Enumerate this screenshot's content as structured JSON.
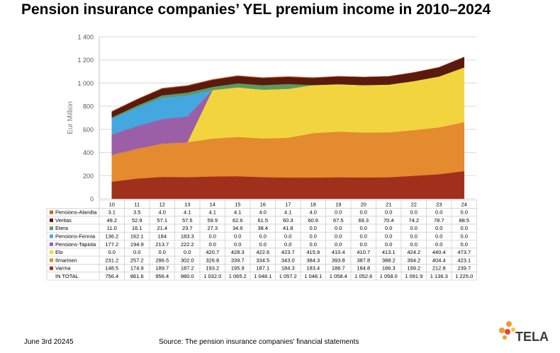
{
  "title": "Pension insurance companies’ YEL premium income in 2010–2024",
  "footer": {
    "date": "June 3rd 20245",
    "source": "Source: The pension insurance companies' financial statements"
  },
  "logo_text": "TELA",
  "chart_data": {
    "type": "area",
    "stacked": true,
    "title": "Pension insurance companies’ YEL premium income in 2010–2024",
    "ylabel": "Eur Million",
    "ylim": [
      0,
      1400
    ],
    "yticks": [
      0,
      200,
      400,
      600,
      800,
      1000,
      1200,
      1400
    ],
    "ytick_labels": [
      "0",
      "200",
      "400",
      "600",
      "800",
      "1 000",
      "1 200",
      "1 400"
    ],
    "categories": [
      "10",
      "11",
      "12",
      "13",
      "14",
      "15",
      "16",
      "17",
      "18",
      "19",
      "20",
      "21",
      "22",
      "23",
      "24"
    ],
    "grid": true,
    "series": [
      {
        "name": "Varma",
        "color": "#a0301c",
        "values": [
          148.5,
          174.9,
          189.7,
          187.2,
          193.2,
          195.9,
          187.1,
          184.3,
          183.4,
          186.7,
          184.8,
          186.3,
          199.2,
          212.8,
          239.7
        ],
        "labels": [
          "148.5",
          "174.9",
          "189.7",
          "187.2",
          "193.2",
          "195.9",
          "187.1",
          "184.3",
          "183.4",
          "186.7",
          "184.8",
          "186.3",
          "199.2",
          "212.8",
          "239.7"
        ]
      },
      {
        "name": "Ilmarinen",
        "color": "#e48a2f",
        "values": [
          231.2,
          257.2,
          286.5,
          302.0,
          326.8,
          339.7,
          334.5,
          343.0,
          384.3,
          393.8,
          387.8,
          388.2,
          394.2,
          404.4,
          423.1
        ],
        "labels": [
          "231.2",
          "257.2",
          "286.5",
          "302.0",
          "326.8",
          "339.7",
          "334.5",
          "343.0",
          "384.3",
          "393.8",
          "387.8",
          "388.2",
          "394.2",
          "404.4",
          "423.1"
        ]
      },
      {
        "name": "Elo",
        "color": "#f2d43f",
        "values": [
          0,
          0,
          0,
          0,
          420.7,
          428.3,
          422.6,
          423.7,
          415.9,
          410.4,
          410.7,
          413.1,
          424.2,
          440.4,
          473.7
        ],
        "labels": [
          "0.0",
          "0.0",
          "0.0",
          "0.0",
          "420.7",
          "428.3",
          "422.6",
          "423.7",
          "415.9",
          "410.4",
          "410.7",
          "413.1",
          "424.2",
          "440.4",
          "473.7"
        ]
      },
      {
        "name": "Pensions-Tapiola",
        "color": "#9b5fa8",
        "values": [
          177.2,
          194.9,
          213.7,
          222.2,
          0,
          0,
          0,
          0,
          0,
          0,
          0,
          0,
          0,
          0,
          0
        ],
        "labels": [
          "177.2",
          "194.9",
          "213.7",
          "222.2",
          "0.0",
          "0.0",
          "0.0",
          "0.0",
          "0.0",
          "0.0",
          "0.0",
          "0.0",
          "0.0",
          "0.0",
          "0.0"
        ]
      },
      {
        "name": "Pensions-Fennia",
        "color": "#44a7df",
        "values": [
          136.2,
          162.1,
          184,
          183.3,
          0,
          0,
          0,
          0,
          0,
          0,
          0,
          0,
          0,
          0,
          0
        ],
        "labels": [
          "136.2",
          "162.1",
          "184",
          "183.3",
          "0.0",
          "0.0",
          "0.0",
          "0.0",
          "0.0",
          "0.0",
          "0.0",
          "0.0",
          "0.0",
          "0.0",
          "0.0"
        ]
      },
      {
        "name": "Etera",
        "color": "#5c9a5c",
        "values": [
          11.0,
          16.1,
          21.4,
          23.7,
          27.3,
          34.6,
          38.4,
          41.8,
          0,
          0,
          0,
          0,
          0,
          0,
          0
        ],
        "labels": [
          "11.0",
          "16.1",
          "21.4",
          "23.7",
          "27.3",
          "34.6",
          "38.4",
          "41.8",
          "0.0",
          "0.0",
          "0.0",
          "0.0",
          "0.0",
          "0.0",
          "0.0"
        ]
      },
      {
        "name": "Veritas",
        "color": "#5a1a0f",
        "values": [
          49.2,
          52.9,
          57.1,
          57.5,
          59.9,
          62.6,
          61.5,
          60.3,
          60.6,
          67.5,
          69.3,
          70.4,
          74.2,
          78.7,
          88.5
        ],
        "labels": [
          "49.2",
          "52.9",
          "57.1",
          "57.5",
          "59.9",
          "62.6",
          "61.5",
          "60.3",
          "60.6",
          "67.5",
          "69.3",
          "70.4",
          "74.2",
          "78.7",
          "88.5"
        ]
      },
      {
        "name": "Pensions-Alandia",
        "color": "#c8622a",
        "values": [
          3.1,
          3.5,
          4.0,
          4.1,
          4.1,
          4.1,
          4.0,
          4.1,
          4.0,
          0,
          0,
          0,
          0,
          0,
          0
        ],
        "labels": [
          "3.1",
          "3.5",
          "4.0",
          "4.1",
          "4.1",
          "4.1",
          "4.0",
          "4.1",
          "4.0",
          "0.0",
          "0.0",
          "0.0",
          "0.0",
          "0.0",
          "0.0"
        ]
      }
    ],
    "table_row_order": [
      "Pensions-Alandia",
      "Veritas",
      "Etera",
      "Pensions-Fennia",
      "Pensions-Tapiola",
      "Elo",
      "Ilmarinen",
      "Varma"
    ],
    "total": {
      "name": "IN TOTAL",
      "values": [
        756.4,
        861.6,
        956.4,
        980.0,
        1032.0,
        1065.2,
        1048.1,
        1057.2,
        1048.1,
        1058.4,
        1052.6,
        1058.0,
        1091.9,
        1136.3,
        1225.0
      ],
      "labels": [
        "756.4",
        "861.6",
        "956.4",
        "980.0",
        "1 032.0",
        "1 065.2",
        "1 048.1",
        "1 057.2",
        "1 048.1",
        "1 058.4",
        "1 052.6",
        "1 058.0",
        "1 091.9",
        "1 136.3",
        "1 225.0"
      ]
    }
  }
}
